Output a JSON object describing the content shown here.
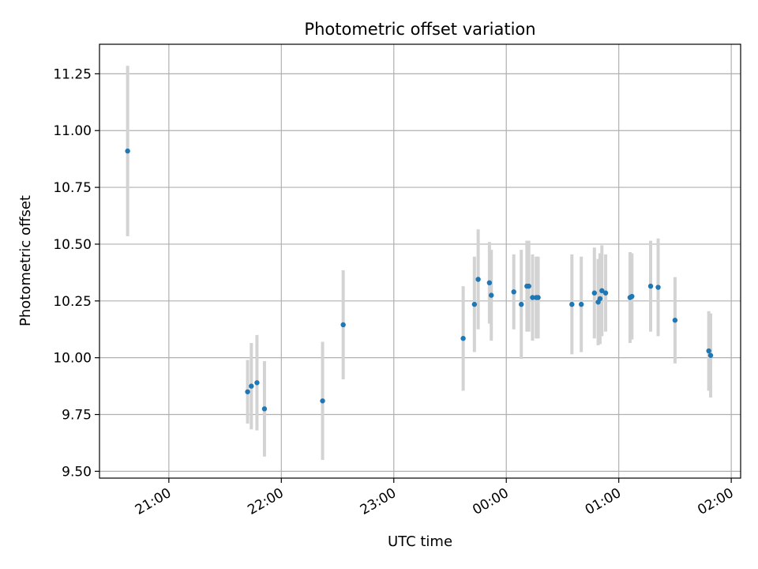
{
  "chart_data": {
    "type": "scatter",
    "title": "Photometric offset variation",
    "xlabel": "UTC time",
    "ylabel": "Photometric offset",
    "x_axis_kind": "time",
    "xlim": [
      "20:23",
      "02:05"
    ],
    "ylim": [
      9.47,
      11.38
    ],
    "grid": true,
    "legend": "none",
    "x_ticks": [
      "21:00",
      "22:00",
      "23:00",
      "00:00",
      "01:00",
      "02:00"
    ],
    "y_ticks": [
      "9.50",
      "9.75",
      "10.00",
      "10.25",
      "10.50",
      "10.75",
      "11.00",
      "11.25"
    ],
    "colors": {
      "marker": "#1f77b4",
      "errorbar": "#d3d3d3",
      "grid": "#b0b0b0"
    },
    "points": [
      {
        "time": "20:38",
        "y": 10.91,
        "err": 0.375
      },
      {
        "time": "21:42",
        "y": 9.85,
        "err": 0.14
      },
      {
        "time": "21:44",
        "y": 9.875,
        "err": 0.19
      },
      {
        "time": "21:47",
        "y": 9.89,
        "err": 0.21
      },
      {
        "time": "21:51",
        "y": 9.775,
        "err": 0.21
      },
      {
        "time": "22:22",
        "y": 9.81,
        "err": 0.26
      },
      {
        "time": "22:33",
        "y": 10.145,
        "err": 0.24
      },
      {
        "time": "23:37",
        "y": 10.085,
        "err": 0.23
      },
      {
        "time": "23:43",
        "y": 10.235,
        "err": 0.21
      },
      {
        "time": "23:45",
        "y": 10.345,
        "err": 0.22
      },
      {
        "time": "23:51",
        "y": 10.33,
        "err": 0.18
      },
      {
        "time": "23:52",
        "y": 10.275,
        "err": 0.2
      },
      {
        "time": "00:04",
        "y": 10.29,
        "err": 0.165
      },
      {
        "time": "00:08",
        "y": 10.235,
        "err": 0.24
      },
      {
        "time": "00:11",
        "y": 10.315,
        "err": 0.2
      },
      {
        "time": "00:12",
        "y": 10.315,
        "err": 0.2
      },
      {
        "time": "00:14",
        "y": 10.265,
        "err": 0.19
      },
      {
        "time": "00:16",
        "y": 10.265,
        "err": 0.18
      },
      {
        "time": "00:17",
        "y": 10.265,
        "err": 0.18
      },
      {
        "time": "00:35",
        "y": 10.235,
        "err": 0.22
      },
      {
        "time": "00:40",
        "y": 10.235,
        "err": 0.21
      },
      {
        "time": "00:47",
        "y": 10.285,
        "err": 0.2
      },
      {
        "time": "00:49",
        "y": 10.245,
        "err": 0.19
      },
      {
        "time": "00:50",
        "y": 10.26,
        "err": 0.2
      },
      {
        "time": "00:51",
        "y": 10.295,
        "err": 0.2
      },
      {
        "time": "00:53",
        "y": 10.285,
        "err": 0.17
      },
      {
        "time": "01:06",
        "y": 10.265,
        "err": 0.2
      },
      {
        "time": "01:07",
        "y": 10.27,
        "err": 0.19
      },
      {
        "time": "01:17",
        "y": 10.315,
        "err": 0.2
      },
      {
        "time": "01:21",
        "y": 10.31,
        "err": 0.215
      },
      {
        "time": "01:30",
        "y": 10.165,
        "err": 0.19
      },
      {
        "time": "01:48",
        "y": 10.03,
        "err": 0.175
      },
      {
        "time": "01:49",
        "y": 10.01,
        "err": 0.185
      }
    ]
  }
}
